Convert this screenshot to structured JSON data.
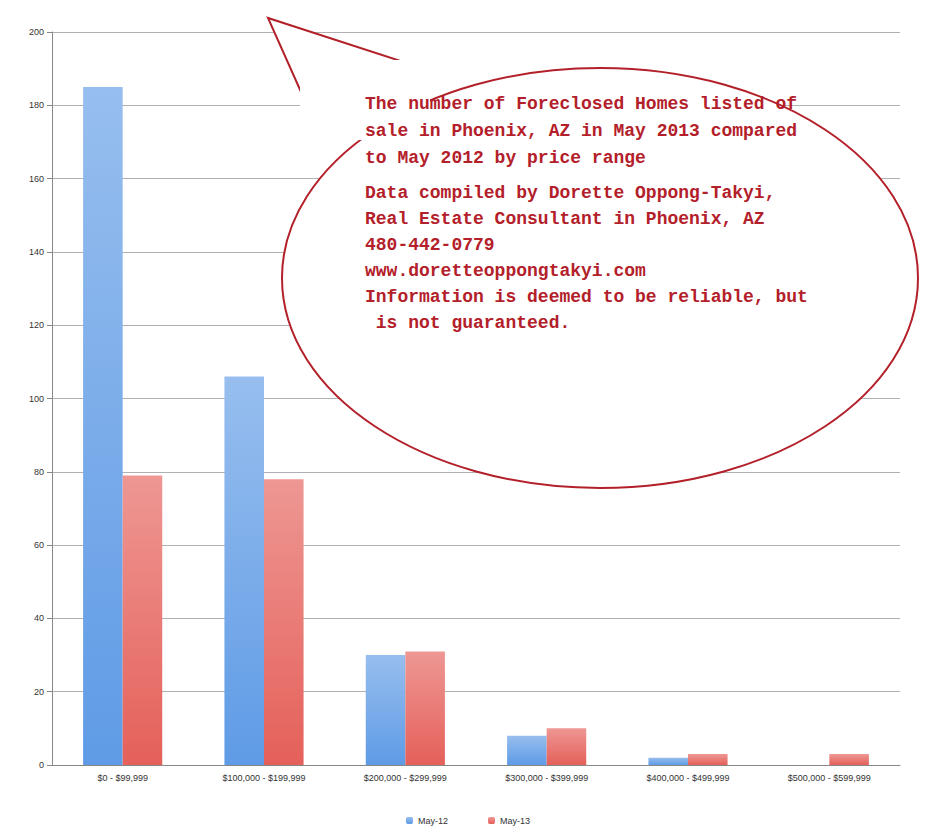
{
  "chart_data": {
    "type": "bar",
    "title": "The number of Foreclosed Homes listed of sale in Phoenix, AZ in May 2013 compared to May 2012 by price range",
    "annotations": [
      "Data compiled by Dorette Oppong-Takyi, Real Estate Consultant in Phoenix, AZ",
      "480-442-0779",
      "www.doretteoppongtakyi.com",
      "Information is deemed to be reliable, but is not guaranteed."
    ],
    "categories": [
      "$0 - $99,999",
      "$100,000 - $199,999",
      "$200,000 - $299,999",
      "$300,000 - $399,999",
      "$400,000 - $499,999",
      "$500,000 - $599,999"
    ],
    "series": [
      {
        "name": "May-12",
        "color": "#5f9be6",
        "values": [
          185,
          106,
          30,
          8,
          2,
          0
        ]
      },
      {
        "name": "May-13",
        "color": "#e5605a",
        "values": [
          79,
          78,
          31,
          10,
          3,
          3
        ]
      }
    ],
    "ylim": [
      0,
      200
    ],
    "yticks": [
      0,
      20,
      40,
      60,
      80,
      100,
      120,
      140,
      160,
      180,
      200
    ],
    "grid": true,
    "legend": "bottom"
  }
}
